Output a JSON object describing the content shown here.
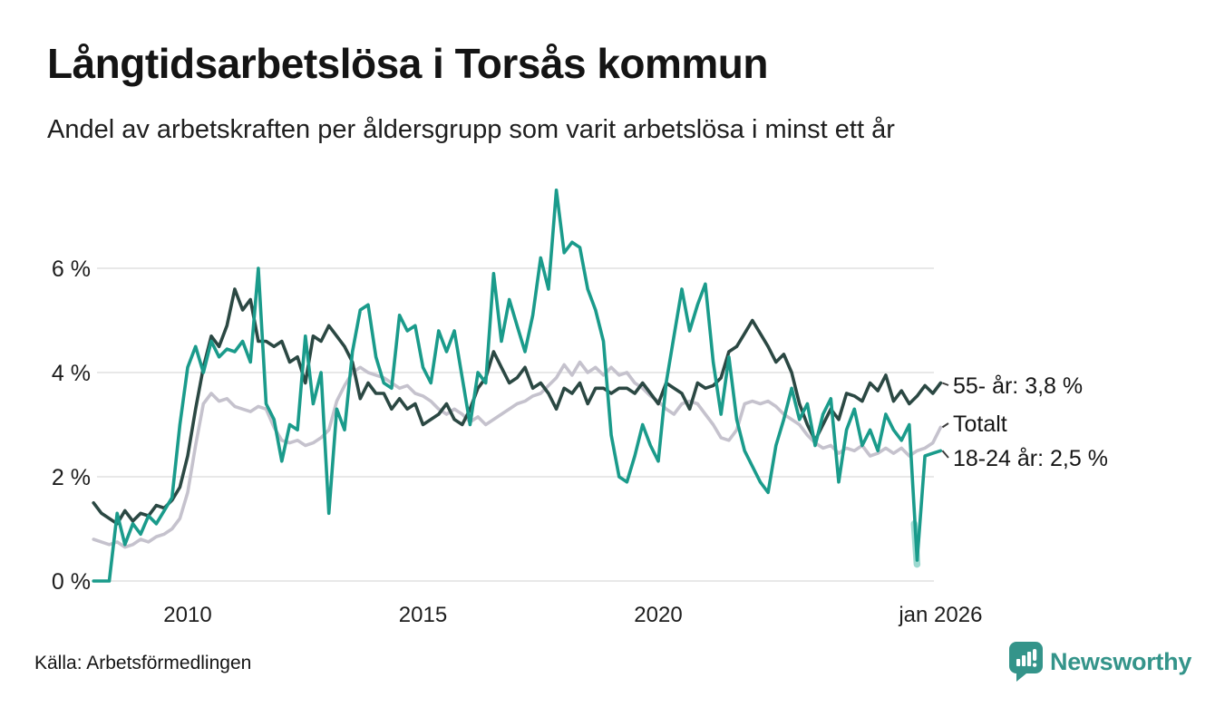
{
  "footer": {
    "source": "Källa: Arbetsförmedlingen",
    "brand": "Newsworthy",
    "brand_color": "#34948a"
  },
  "chart_data": {
    "type": "line",
    "title": "Långtidsarbetslösa i Torsås kommun",
    "subtitle": "Andel av arbetskraften per åldersgrupp som varit arbetslösa i minst ett år",
    "grid": true,
    "legend_position": "right-end-labels",
    "x_start": 2008.0,
    "x_step_years": 0.1666667,
    "x_domain": [
      2008.0,
      2026.0
    ],
    "y_domain": [
      0,
      7.75
    ],
    "grid_color": "#e8e8e8",
    "x_ticks": [
      {
        "value": 2010,
        "label": "2010"
      },
      {
        "value": 2015,
        "label": "2015"
      },
      {
        "value": 2020,
        "label": "2020"
      },
      {
        "value": 2026,
        "label": "jan 2026"
      }
    ],
    "y_ticks": [
      {
        "value": 0,
        "label": "0 %"
      },
      {
        "value": 2,
        "label": "2 %"
      },
      {
        "value": 4,
        "label": "4 %"
      },
      {
        "value": 6,
        "label": "6 %"
      }
    ],
    "series": [
      {
        "id": "totalt",
        "name": "Totalt",
        "end_label": "Totalt",
        "color": "#c5c2cd",
        "values": [
          0.8,
          0.75,
          0.7,
          0.75,
          0.65,
          0.7,
          0.8,
          0.75,
          0.85,
          0.9,
          1.0,
          1.2,
          1.7,
          2.6,
          3.4,
          3.6,
          3.45,
          3.5,
          3.35,
          3.3,
          3.25,
          3.35,
          3.3,
          2.95,
          2.7,
          2.65,
          2.7,
          2.6,
          2.65,
          2.75,
          2.9,
          3.45,
          3.75,
          4.0,
          4.1,
          4.0,
          3.95,
          3.9,
          3.8,
          3.7,
          3.75,
          3.6,
          3.55,
          3.45,
          3.3,
          3.2,
          3.3,
          3.2,
          3.05,
          3.15,
          3.0,
          3.1,
          3.2,
          3.3,
          3.4,
          3.45,
          3.55,
          3.6,
          3.75,
          3.9,
          4.15,
          3.95,
          4.2,
          4.0,
          4.1,
          3.95,
          4.1,
          3.95,
          4.0,
          3.8,
          3.7,
          3.55,
          3.45,
          3.3,
          3.2,
          3.4,
          3.45,
          3.4,
          3.2,
          3.0,
          2.75,
          2.7,
          2.9,
          3.4,
          3.45,
          3.4,
          3.45,
          3.35,
          3.2,
          3.1,
          3.0,
          2.8,
          2.65,
          2.55,
          2.6,
          2.45,
          2.55,
          2.5,
          2.6,
          2.4,
          2.45,
          2.55,
          2.45,
          2.55,
          2.4,
          2.5,
          2.55,
          2.65,
          2.95
        ]
      },
      {
        "id": "55plus",
        "name": "55- år",
        "end_label": "55- år: 3,8 %",
        "last_value_label": "3,8 %",
        "color": "#2b4843",
        "values": [
          1.5,
          1.3,
          1.2,
          1.1,
          1.35,
          1.15,
          1.3,
          1.25,
          1.45,
          1.4,
          1.55,
          1.8,
          2.4,
          3.3,
          4.1,
          4.7,
          4.5,
          4.9,
          5.6,
          5.2,
          5.4,
          4.6,
          4.6,
          4.5,
          4.6,
          4.2,
          4.3,
          3.8,
          4.7,
          4.6,
          4.9,
          4.7,
          4.5,
          4.2,
          3.5,
          3.8,
          3.6,
          3.6,
          3.3,
          3.5,
          3.3,
          3.4,
          3.0,
          3.1,
          3.2,
          3.4,
          3.1,
          3.0,
          3.3,
          3.7,
          3.9,
          4.4,
          4.1,
          3.8,
          3.9,
          4.1,
          3.7,
          3.8,
          3.6,
          3.3,
          3.7,
          3.6,
          3.8,
          3.4,
          3.7,
          3.7,
          3.6,
          3.7,
          3.7,
          3.6,
          3.8,
          3.6,
          3.4,
          3.8,
          3.7,
          3.6,
          3.3,
          3.8,
          3.7,
          3.75,
          3.9,
          4.4,
          4.5,
          4.75,
          5.0,
          4.75,
          4.5,
          4.2,
          4.35,
          4.0,
          3.4,
          3.0,
          2.7,
          3.0,
          3.3,
          3.1,
          3.6,
          3.55,
          3.45,
          3.8,
          3.65,
          3.95,
          3.45,
          3.65,
          3.4,
          3.55,
          3.75,
          3.6,
          3.8
        ]
      },
      {
        "id": "18-24",
        "name": "18-24 år",
        "end_label": "18-24 år: 2,5 %",
        "last_value_label": "2,5 %",
        "color": "#1a9b8b",
        "values": [
          0.0,
          0.0,
          0.0,
          1.3,
          0.7,
          1.1,
          0.9,
          1.25,
          1.1,
          1.35,
          1.6,
          3.0,
          4.1,
          4.5,
          4.0,
          4.6,
          4.3,
          4.45,
          4.4,
          4.6,
          4.2,
          6.0,
          3.4,
          3.1,
          2.3,
          3.0,
          2.9,
          4.7,
          3.4,
          4.0,
          1.3,
          3.3,
          2.9,
          4.4,
          5.2,
          5.3,
          4.3,
          3.8,
          3.7,
          5.1,
          4.8,
          4.9,
          4.1,
          3.8,
          4.8,
          4.4,
          4.8,
          3.9,
          3.0,
          4.0,
          3.8,
          5.9,
          4.6,
          5.4,
          4.9,
          4.4,
          5.1,
          6.2,
          5.6,
          7.5,
          6.3,
          6.5,
          6.4,
          5.6,
          5.2,
          4.6,
          2.8,
          2.0,
          1.9,
          2.4,
          3.0,
          2.6,
          2.3,
          3.8,
          4.7,
          5.6,
          4.8,
          5.3,
          5.7,
          4.2,
          3.2,
          4.3,
          3.1,
          2.5,
          2.2,
          1.9,
          1.7,
          2.6,
          3.1,
          3.7,
          3.1,
          3.4,
          2.6,
          3.2,
          3.5,
          1.9,
          2.9,
          3.3,
          2.6,
          2.9,
          2.5,
          3.2,
          2.9,
          2.7,
          3.0,
          0.4,
          2.4,
          2.45,
          2.5
        ]
      }
    ],
    "preliminary_segment": {
      "series": "18-24",
      "x": [
        2025.44,
        2025.5
      ],
      "values": [
        1.1,
        0.32
      ],
      "color": "#9cd9d0"
    }
  }
}
